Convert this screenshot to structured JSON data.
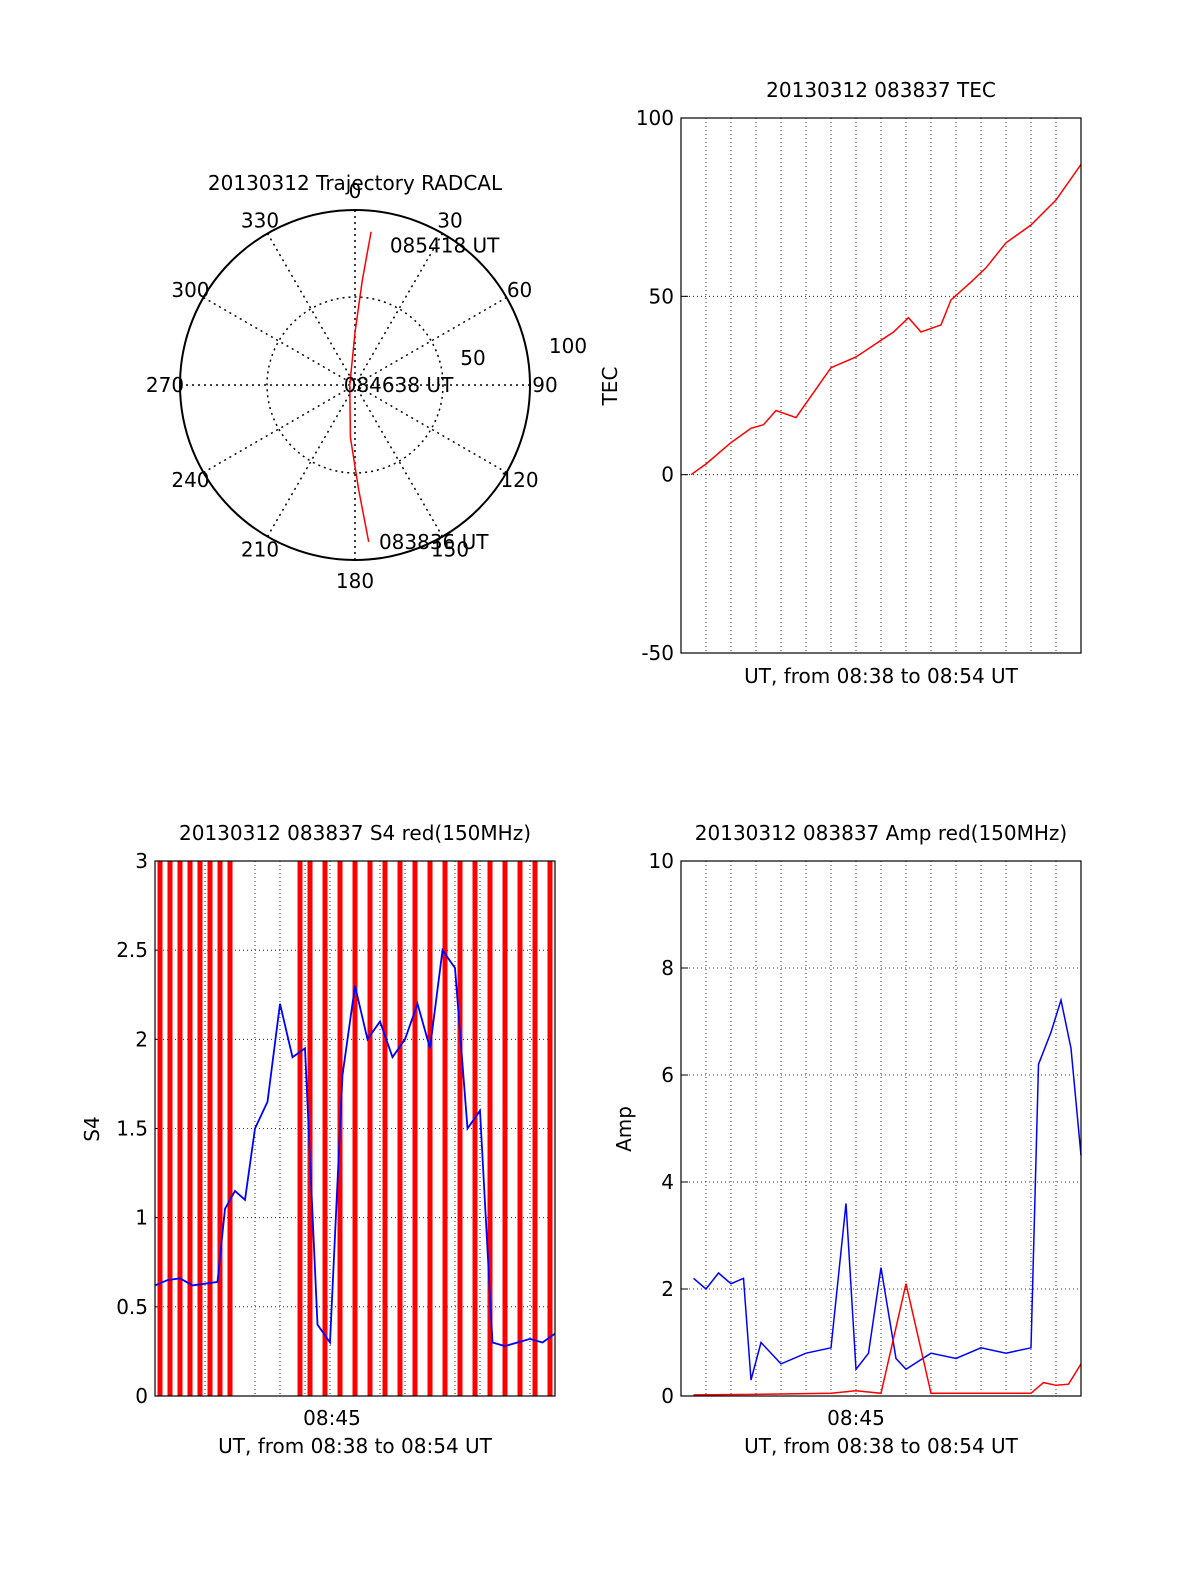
{
  "chart_data": [
    {
      "type": "polar",
      "title": "20130312 Trajectory RADCAL",
      "angle_labels": [
        "0",
        "30",
        "60",
        "90",
        "120",
        "150",
        "180",
        "210",
        "240",
        "270",
        "300",
        "330"
      ],
      "radial_labels": [
        "50",
        "100"
      ],
      "radial_range": [
        0,
        100
      ],
      "annotations": [
        {
          "text": "085418 UT",
          "az": 10,
          "r": 81
        },
        {
          "text": "084638 UT",
          "az": 90,
          "r": 2
        },
        {
          "text": "083836 UT",
          "az": 175,
          "r": 90
        }
      ],
      "trajectory": [
        {
          "az": 6,
          "r": 88
        },
        {
          "az": 4,
          "r": 60
        },
        {
          "az": 0,
          "r": 30
        },
        {
          "az": 270,
          "r": 3
        },
        {
          "az": 185,
          "r": 30
        },
        {
          "az": 178,
          "r": 60
        },
        {
          "az": 175,
          "r": 90
        }
      ],
      "trajectory_color": "#ff0000"
    },
    {
      "type": "line",
      "title": "20130312 083837 TEC",
      "xlabel": "UT, from 08:38 to 08:54 UT",
      "ylabel": "TEC",
      "xlim": [
        0,
        16
      ],
      "ylim": [
        -50,
        100
      ],
      "yticks": [
        "-50",
        "0",
        "50",
        "100"
      ],
      "grid": true,
      "series": [
        {
          "name": "TEC",
          "color": "#ff0000",
          "x": [
            0.4,
            1.0,
            2.0,
            2.8,
            3.3,
            3.8,
            4.6,
            5.2,
            6.0,
            7.0,
            8.5,
            9.1,
            9.6,
            10.4,
            10.8,
            11.6,
            12.2,
            13.0,
            14.0,
            15.0,
            16.0
          ],
          "y": [
            0,
            3,
            9,
            13,
            14,
            18,
            16,
            22,
            30,
            33,
            40,
            44,
            40,
            42,
            49,
            54,
            58,
            65,
            70,
            77,
            87
          ]
        }
      ]
    },
    {
      "type": "line",
      "title": "20130312 083837 S4 red(150MHz)",
      "xlabel": "UT, from 08:38 to 08:54 UT",
      "ylabel": "S4",
      "xlim": [
        0,
        16
      ],
      "ylim": [
        0,
        3
      ],
      "yticks": [
        "0",
        "0.5",
        "1",
        "1.5",
        "2",
        "2.5",
        "3"
      ],
      "xticks": [
        {
          "x": 7,
          "label": "08:45"
        }
      ],
      "grid": true,
      "series": [
        {
          "name": "red (150MHz)",
          "color": "#ff0000",
          "x": [
            0.2,
            0.6,
            1.0,
            1.4,
            1.8,
            2.2,
            2.6,
            3.0,
            5.8,
            6.2,
            6.8,
            7.4,
            8.0,
            8.6,
            9.2,
            9.8,
            10.4,
            11.0,
            11.6,
            12.2,
            12.8,
            13.4,
            14.0,
            14.6,
            15.2,
            15.8
          ],
          "y": [
            3,
            3,
            3,
            3,
            3,
            3,
            3,
            3,
            3,
            3,
            3,
            3,
            3,
            3,
            3,
            3,
            3,
            3,
            3,
            3,
            3,
            3,
            3,
            3,
            3,
            3
          ]
        },
        {
          "name": "blue",
          "color": "#0000ff",
          "x": [
            0,
            0.5,
            1.0,
            1.5,
            2.0,
            2.5,
            2.8,
            3.2,
            3.6,
            4.0,
            4.5,
            5.0,
            5.5,
            6.0,
            6.5,
            7.0,
            7.5,
            8.0,
            8.5,
            9.0,
            9.5,
            10.0,
            10.5,
            11.0,
            11.5,
            12.0,
            12.5,
            13.0,
            13.5,
            14.0,
            14.5,
            15.0,
            15.5,
            16.0
          ],
          "y": [
            0.62,
            0.65,
            0.66,
            0.62,
            0.63,
            0.64,
            1.05,
            1.15,
            1.1,
            1.5,
            1.65,
            2.2,
            1.9,
            1.95,
            0.4,
            0.3,
            1.8,
            2.3,
            2.0,
            2.1,
            1.9,
            2.0,
            2.2,
            1.95,
            2.5,
            2.4,
            1.5,
            1.6,
            0.3,
            0.28,
            0.3,
            0.32,
            0.3,
            0.35
          ]
        }
      ]
    },
    {
      "type": "line",
      "title": "20130312 083837 Amp red(150MHz)",
      "xlabel": "UT, from 08:38 to 08:54 UT",
      "ylabel": "Amp",
      "xlim": [
        0,
        16
      ],
      "ylim": [
        0,
        10
      ],
      "yticks": [
        "0",
        "2",
        "4",
        "6",
        "8",
        "10"
      ],
      "xticks": [
        {
          "x": 7,
          "label": "08:45"
        }
      ],
      "grid": true,
      "series": [
        {
          "name": "blue",
          "color": "#0000ff",
          "x": [
            0.5,
            1.0,
            1.5,
            2.0,
            2.5,
            2.8,
            3.2,
            4.0,
            5.0,
            6.0,
            6.6,
            7.0,
            7.5,
            8.0,
            8.6,
            9.0,
            10.0,
            11.0,
            12.0,
            13.0,
            14.0,
            14.3,
            14.8,
            15.2,
            15.6,
            16.0
          ],
          "y": [
            2.2,
            2.0,
            2.3,
            2.1,
            2.2,
            0.3,
            1.0,
            0.6,
            0.8,
            0.9,
            3.6,
            0.5,
            0.8,
            2.4,
            0.7,
            0.5,
            0.8,
            0.7,
            0.9,
            0.8,
            0.9,
            6.2,
            6.8,
            7.4,
            6.5,
            4.5
          ]
        },
        {
          "name": "red (150MHz)",
          "color": "#ff0000",
          "x": [
            0.5,
            3.0,
            6.0,
            7.0,
            8.0,
            9.0,
            10.0,
            12.0,
            14.0,
            14.5,
            15.0,
            15.5,
            16.0
          ],
          "y": [
            0.02,
            0.03,
            0.05,
            0.1,
            0.05,
            2.1,
            0.05,
            0.05,
            0.05,
            0.25,
            0.2,
            0.22,
            0.6
          ]
        }
      ]
    }
  ]
}
